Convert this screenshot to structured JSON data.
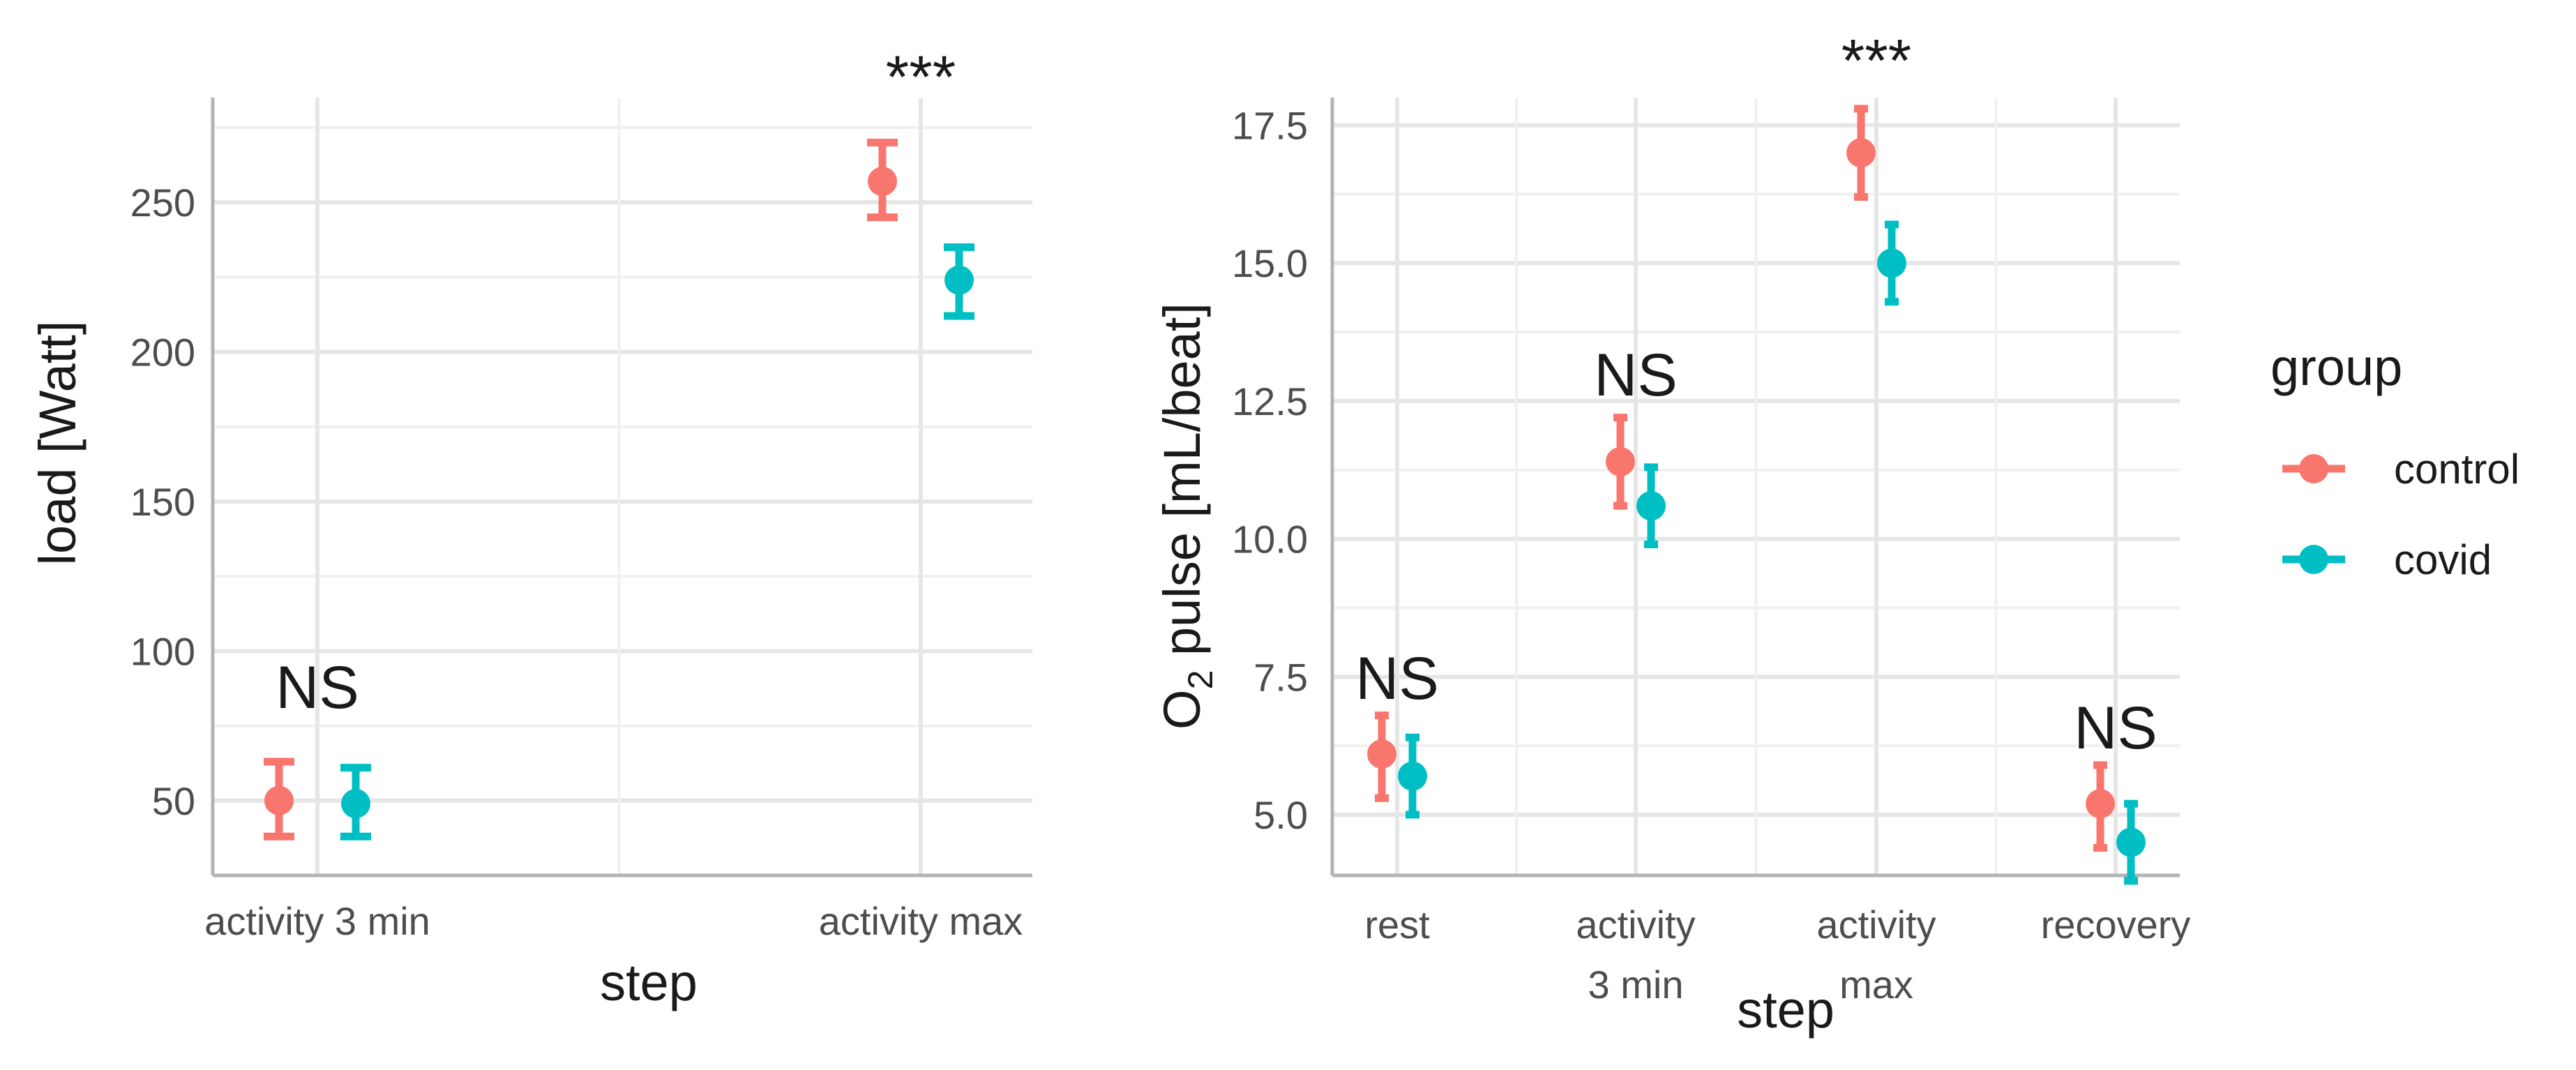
{
  "chart_data": [
    {
      "type": "scatter",
      "subtype": "pointrange",
      "xlabel": "step",
      "ylabel": "load [Watt]",
      "categories": [
        "activity 3 min",
        "activity max"
      ],
      "ylim": [
        25,
        285
      ],
      "yticks": [
        "50",
        "100",
        "150",
        "200",
        "250"
      ],
      "grid": true,
      "series": [
        {
          "name": "control",
          "color": "#F8766D",
          "values": [
            50,
            257
          ],
          "lower": [
            38,
            245
          ],
          "upper": [
            63,
            270
          ]
        },
        {
          "name": "covid",
          "color": "#00BFC4",
          "values": [
            49,
            224
          ],
          "lower": [
            38,
            212
          ],
          "upper": [
            61,
            235
          ]
        }
      ],
      "annotations": [
        {
          "category": "activity 3 min",
          "text": "NS",
          "y": 81
        },
        {
          "category": "activity max",
          "text": "***",
          "y": 285
        }
      ]
    },
    {
      "type": "scatter",
      "subtype": "pointrange",
      "xlabel": "step",
      "ylabel": "O2 pulse [mL/beat]",
      "ylabel_main": "O",
      "ylabel_sub": "2",
      "ylabel_rest": " pulse [mL/beat]",
      "categories": [
        "rest",
        "activity 3 min",
        "activity max",
        "recovery"
      ],
      "category_lines": [
        [
          "rest"
        ],
        [
          "activity",
          "3 min"
        ],
        [
          "activity",
          "max"
        ],
        [
          "recovery"
        ]
      ],
      "ylim": [
        3.9,
        18.0
      ],
      "yticks": [
        "5.0",
        "7.5",
        "10.0",
        "12.5",
        "15.0",
        "17.5"
      ],
      "grid": true,
      "series": [
        {
          "name": "control",
          "color": "#F8766D",
          "values": [
            6.1,
            11.4,
            17.0,
            5.2
          ],
          "lower": [
            5.3,
            10.6,
            16.2,
            4.4
          ],
          "upper": [
            6.8,
            12.2,
            17.8,
            5.9
          ]
        },
        {
          "name": "covid",
          "color": "#00BFC4",
          "values": [
            5.7,
            10.6,
            15.0,
            4.5
          ],
          "lower": [
            5.0,
            9.9,
            14.3,
            3.8
          ],
          "upper": [
            6.4,
            11.3,
            15.7,
            5.2
          ]
        }
      ],
      "annotations": [
        {
          "category": "rest",
          "text": "NS",
          "y": 7.1
        },
        {
          "category": "activity 3 min",
          "text": "NS",
          "y": 12.6
        },
        {
          "category": "activity max",
          "text": "***",
          "y": 18.3
        },
        {
          "category": "recovery",
          "text": "NS",
          "y": 6.2
        }
      ]
    }
  ],
  "legend": {
    "title": "group",
    "position": "right",
    "items": [
      {
        "label": "control",
        "color": "#F8766D"
      },
      {
        "label": "covid",
        "color": "#00BFC4"
      }
    ]
  }
}
